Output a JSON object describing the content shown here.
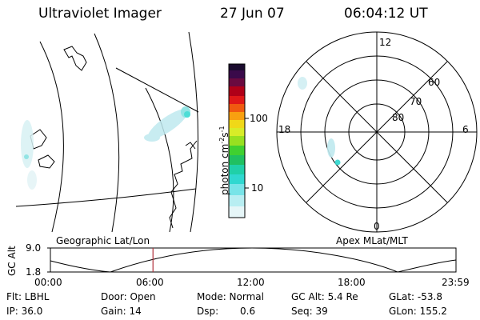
{
  "header": {
    "title": "Ultraviolet Imager",
    "date": "27 Jun 07",
    "time": "06:04:12 UT"
  },
  "colorbar": {
    "unit": "photon cm",
    "unit_exp1": "-2",
    "unit_s": "s",
    "unit_exp2": "-1",
    "tick_100": "100",
    "tick_10": "10"
  },
  "polar": {
    "label_12": "12",
    "label_18": "18",
    "label_6": "6",
    "label_0": "0",
    "lat_60": "60",
    "lat_70": "70",
    "lat_80": "80"
  },
  "panels": {
    "geo_label": "Geographic Lat/Lon",
    "apex_label": "Apex MLat/MLT"
  },
  "altplot": {
    "ylabel": "GC Alt",
    "ytick_top": "9.0",
    "ytick_bottom": "1.8",
    "xticks": [
      "00:00",
      "06:00",
      "12:00",
      "18:00",
      "23:59"
    ],
    "marker_hour": 6.07
  },
  "info": {
    "flt": "Flt: LBHL",
    "ip": "IP: 36.0",
    "door": "Door: Open",
    "gain": "Gain: 14",
    "mode": "Mode: Normal",
    "dsp_label": "Dsp:",
    "dsp_value": "0.6",
    "gc_alt": "GC Alt: 5.4 Re",
    "seq": "Seq: 39",
    "glat": "GLat: -53.8",
    "glon": "GLon: 155.2"
  },
  "colors": {
    "marker": "#b0303a",
    "aurora_light": "#bfe9ef",
    "aurora_bright": "#2ed8cf"
  }
}
